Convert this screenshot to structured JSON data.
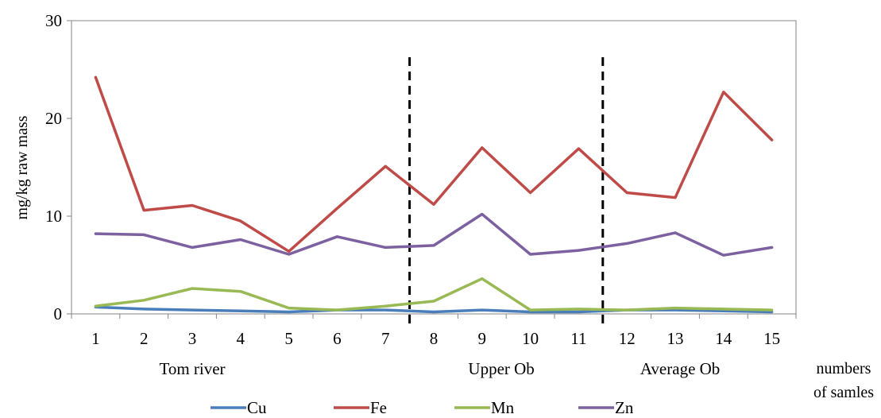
{
  "chart_data": {
    "type": "line",
    "title": "",
    "xlabel": "numbers of samles",
    "xlabel_lines": [
      "numbers",
      "of samles"
    ],
    "ylabel": "mg/kg raw mass",
    "ylim": [
      0,
      30
    ],
    "yticks": [
      0,
      10,
      20,
      30
    ],
    "x": [
      1,
      2,
      3,
      4,
      5,
      6,
      7,
      8,
      9,
      10,
      11,
      12,
      13,
      14,
      15
    ],
    "series": [
      {
        "name": "Cu",
        "color": "#4a7ebb",
        "values": [
          0.7,
          0.5,
          0.4,
          0.3,
          0.2,
          0.4,
          0.4,
          0.2,
          0.4,
          0.2,
          0.2,
          0.4,
          0.4,
          0.3,
          0.2
        ]
      },
      {
        "name": "Fe",
        "color": "#be4b48",
        "values": [
          24.2,
          10.6,
          11.1,
          9.5,
          6.4,
          10.8,
          15.1,
          11.2,
          17.0,
          12.4,
          16.9,
          12.4,
          11.9,
          22.7,
          17.8
        ]
      },
      {
        "name": "Mn",
        "color": "#98b954",
        "values": [
          0.8,
          1.4,
          2.6,
          2.3,
          0.6,
          0.4,
          0.8,
          1.3,
          3.6,
          0.4,
          0.5,
          0.4,
          0.6,
          0.5,
          0.4
        ]
      },
      {
        "name": "Zn",
        "color": "#7d60a0",
        "values": [
          8.2,
          8.1,
          6.8,
          7.6,
          6.1,
          7.9,
          6.8,
          7.0,
          10.2,
          6.1,
          6.5,
          7.2,
          8.3,
          6.0,
          6.8
        ]
      }
    ],
    "dividers_after_sample": [
      7,
      11
    ],
    "groups": [
      {
        "label": "Tom river",
        "center_sample": 3
      },
      {
        "label": "Upper Ob",
        "center_sample": 9.4
      },
      {
        "label": "Average Ob",
        "center_sample": 13.1
      }
    ],
    "grid": false,
    "legend_position": "bottom"
  }
}
